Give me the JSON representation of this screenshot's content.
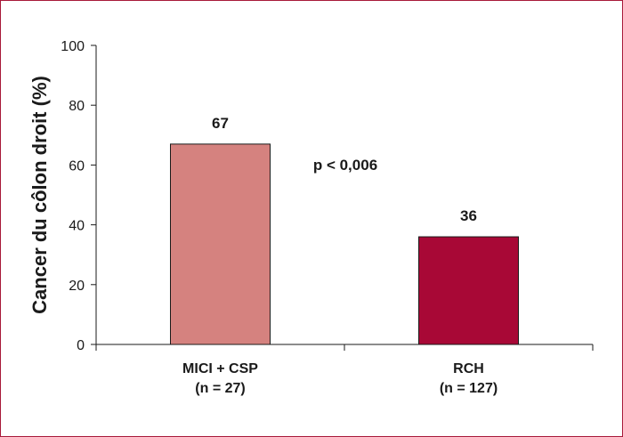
{
  "chart_data": {
    "type": "bar",
    "categories": [
      [
        "MICI + CSP",
        "(n = 27)"
      ],
      [
        "RCH",
        "(n = 127)"
      ]
    ],
    "values": [
      67,
      36
    ],
    "data_labels": [
      "67",
      "36"
    ],
    "bar_colors": [
      "#d5827f",
      "#a80836"
    ],
    "ylabel": "Cancer du côlon droit (%)",
    "ylim": [
      0,
      100
    ],
    "yticks": [
      0,
      20,
      40,
      60,
      80,
      100
    ],
    "annotation": "p < 0,006",
    "grid": false
  }
}
